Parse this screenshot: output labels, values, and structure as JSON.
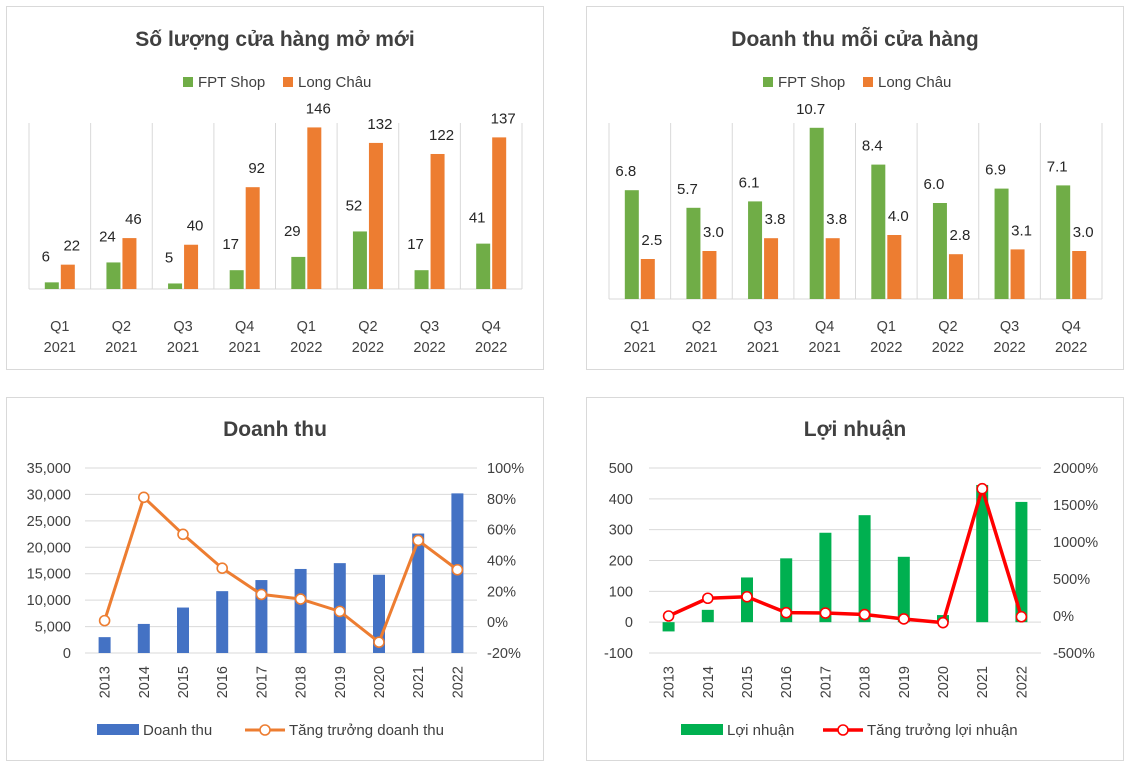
{
  "colors": {
    "fpt_green": "#70ad47",
    "long_chau_orange": "#ed7d31",
    "revenue_blue": "#4472c4",
    "revenue_growth_line": "#ed7d31",
    "profit_green": "#00b050",
    "profit_growth_line": "#ff0000",
    "gridline": "#d9d9d9"
  },
  "chart_data": [
    {
      "id": "new_stores",
      "type": "bar",
      "title": "Số lượng cửa hàng mở mới",
      "categories": [
        [
          "Q1",
          "2021"
        ],
        [
          "Q2",
          "2021"
        ],
        [
          "Q3",
          "2021"
        ],
        [
          "Q4",
          "2021"
        ],
        [
          "Q1",
          "2022"
        ],
        [
          "Q2",
          "2022"
        ],
        [
          "Q3",
          "2022"
        ],
        [
          "Q4",
          "2022"
        ]
      ],
      "series": [
        {
          "name": "FPT Shop",
          "values": [
            6,
            24,
            5,
            17,
            29,
            52,
            17,
            41
          ]
        },
        {
          "name": "Long Châu",
          "values": [
            22,
            46,
            40,
            92,
            146,
            132,
            122,
            137
          ]
        }
      ],
      "data_labels": true,
      "ylim": [
        0,
        150
      ],
      "legend": "top"
    },
    {
      "id": "revenue_per_store",
      "type": "bar",
      "title": "Doanh thu mỗi cửa hàng",
      "categories": [
        [
          "Q1",
          "2021"
        ],
        [
          "Q2",
          "2021"
        ],
        [
          "Q3",
          "2021"
        ],
        [
          "Q4",
          "2021"
        ],
        [
          "Q1",
          "2022"
        ],
        [
          "Q2",
          "2022"
        ],
        [
          "Q3",
          "2022"
        ],
        [
          "Q4",
          "2022"
        ]
      ],
      "series": [
        {
          "name": "FPT Shop",
          "values": [
            6.8,
            5.7,
            6.1,
            10.7,
            8.4,
            6.0,
            6.9,
            7.1
          ],
          "labels": [
            "6.8",
            "5.7",
            "6.1",
            "10.7",
            "8.4",
            "6.0",
            "6.9",
            "7.1"
          ]
        },
        {
          "name": "Long Châu",
          "values": [
            2.5,
            3.0,
            3.8,
            3.8,
            4.0,
            2.8,
            3.1,
            3.0
          ],
          "labels": [
            "2.5",
            "3.0",
            "3.8",
            "3.8",
            "4.0",
            "2.8",
            "3.1",
            "3.0"
          ]
        }
      ],
      "data_labels": true,
      "ylim": [
        0,
        11
      ],
      "legend": "top"
    },
    {
      "id": "revenue",
      "type": "bar+line",
      "title": "Doanh thu",
      "x": [
        "2013",
        "2014",
        "2015",
        "2016",
        "2017",
        "2018",
        "2019",
        "2020",
        "2021",
        "2022"
      ],
      "bar_series": {
        "name": "Doanh thu",
        "values": [
          3000,
          5500,
          8600,
          11700,
          13800,
          15900,
          17000,
          14800,
          22600,
          30200
        ]
      },
      "line_series": {
        "name": "Tăng trưởng doanh thu",
        "values": [
          0.01,
          0.81,
          0.57,
          0.35,
          0.18,
          0.15,
          0.07,
          -0.13,
          0.53,
          0.34
        ]
      },
      "left_axis": {
        "ylim": [
          0,
          35000
        ],
        "ticks": [
          "0",
          "5,000",
          "10,000",
          "15,000",
          "20,000",
          "25,000",
          "30,000",
          "35,000"
        ]
      },
      "right_axis": {
        "ylim": [
          -0.2,
          1.0
        ],
        "ticks": [
          "-20%",
          "0%",
          "20%",
          "40%",
          "60%",
          "80%",
          "100%"
        ]
      },
      "legend": "bottom"
    },
    {
      "id": "profit",
      "type": "bar+line",
      "title": "Lợi nhuận",
      "x": [
        "2013",
        "2014",
        "2015",
        "2016",
        "2017",
        "2018",
        "2019",
        "2020",
        "2021",
        "2022"
      ],
      "bar_series": {
        "name": "Lợi nhuận",
        "values": [
          -30,
          40,
          145,
          207,
          290,
          347,
          212,
          23,
          445,
          390
        ]
      },
      "line_series": {
        "name": "Tăng trưởng lợi nhuận",
        "values": [
          0.0,
          2.4,
          2.6,
          0.45,
          0.4,
          0.2,
          -0.4,
          -0.9,
          17.2,
          -0.1
        ]
      },
      "left_axis": {
        "ylim": [
          -100,
          500
        ],
        "ticks": [
          "-100",
          "0",
          "100",
          "200",
          "300",
          "400",
          "500"
        ]
      },
      "right_axis": {
        "ylim": [
          -5,
          20
        ],
        "ticks": [
          "-500%",
          "0%",
          "500%",
          "1000%",
          "1500%",
          "2000%"
        ]
      },
      "legend": "bottom"
    }
  ]
}
